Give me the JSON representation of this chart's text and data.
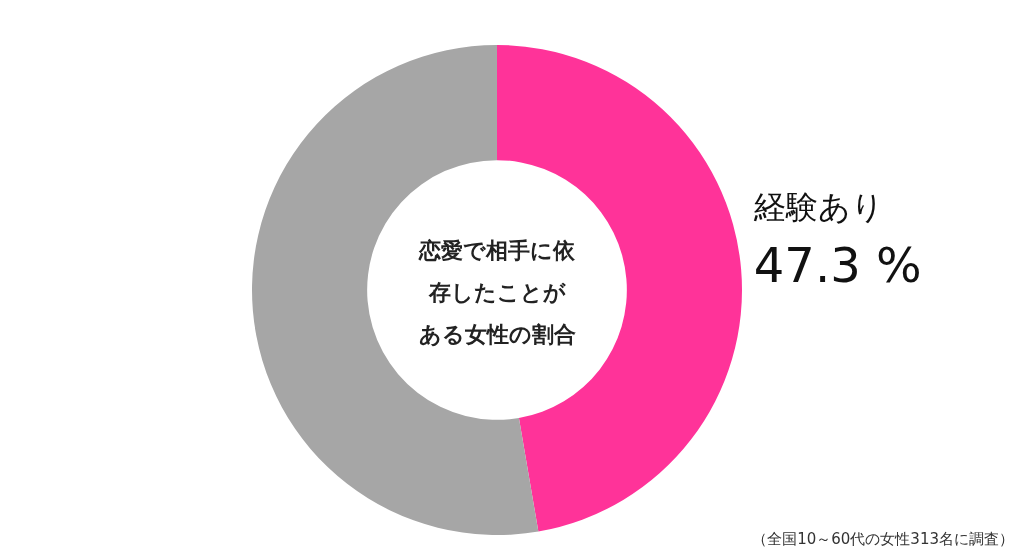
{
  "chart_data": {
    "type": "donut",
    "title": "恋愛で相手に依存したことがある女性の割合",
    "categories": [
      "経験あり",
      null
    ],
    "values": [
      47.3,
      52.7
    ],
    "colors": [
      "#ff3399",
      "#a6a6a6"
    ],
    "value_labels": [
      "47.3 %",
      null
    ],
    "legend": false,
    "annotations": [
      "（全国10～60代の女性313名に調査）"
    ]
  }
}
